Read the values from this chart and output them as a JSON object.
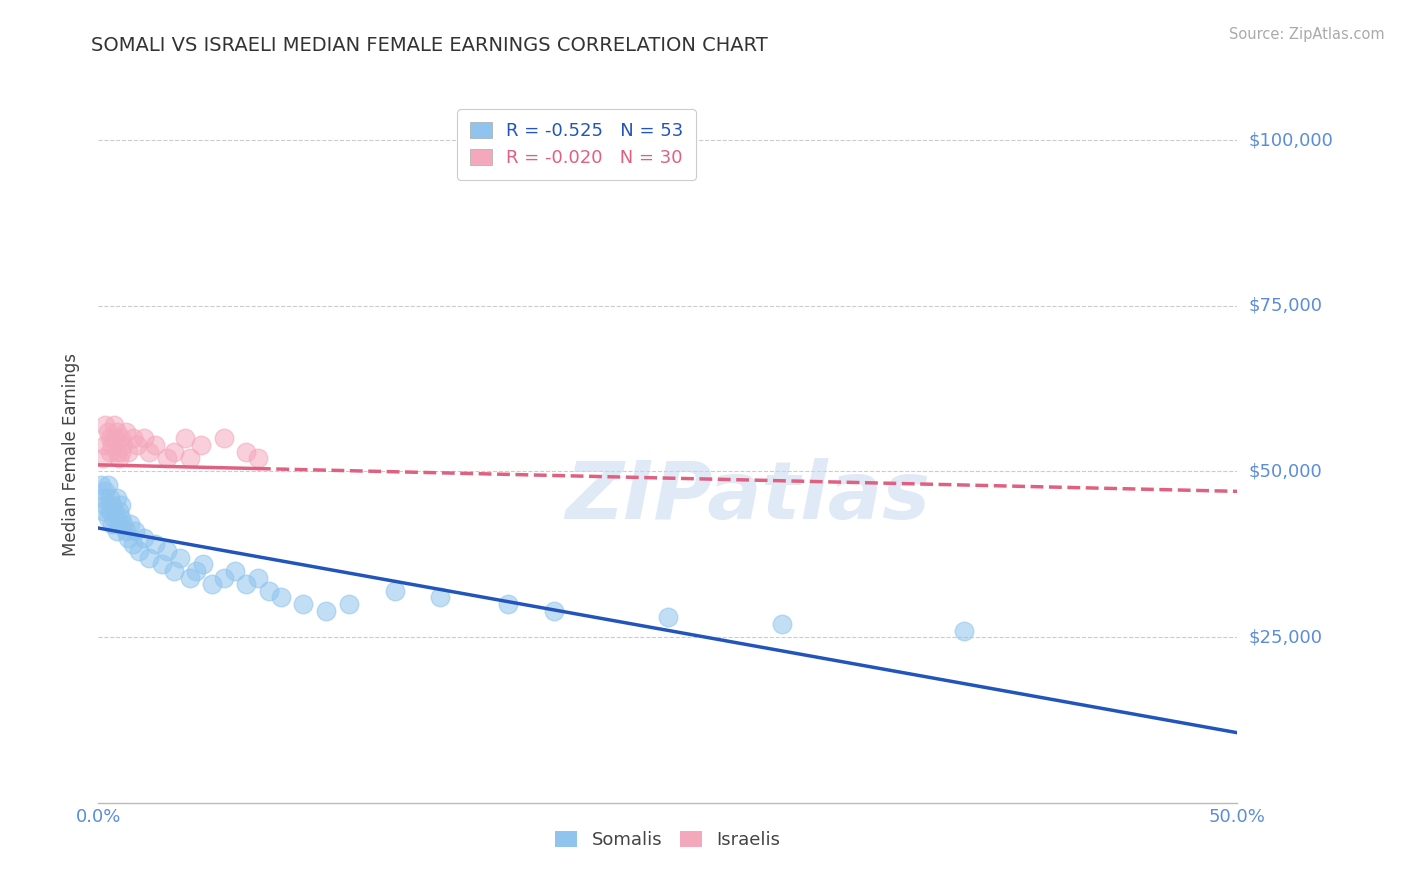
{
  "title": "SOMALI VS ISRAELI MEDIAN FEMALE EARNINGS CORRELATION CHART",
  "source": "Source: ZipAtlas.com",
  "ylabel": "Median Female Earnings",
  "xmin": 0.0,
  "xmax": 0.5,
  "ymin": 0,
  "ymax": 105000,
  "somali_color": "#8EC4EE",
  "israeli_color": "#F4A8BC",
  "somali_line_color": "#2255BB",
  "israeli_line_color": "#E06080",
  "R_somali": -0.525,
  "N_somali": 53,
  "R_israeli": -0.02,
  "N_israeli": 30,
  "watermark": "ZIPatlas",
  "background_color": "#ffffff",
  "grid_color": "#cccccc",
  "ytick_label_color": "#5B8DD9",
  "title_color": "#333333",
  "somali_x": [
    0.001,
    0.002,
    0.002,
    0.003,
    0.003,
    0.004,
    0.004,
    0.005,
    0.005,
    0.006,
    0.006,
    0.007,
    0.007,
    0.008,
    0.008,
    0.009,
    0.009,
    0.01,
    0.01,
    0.011,
    0.012,
    0.013,
    0.014,
    0.015,
    0.016,
    0.018,
    0.02,
    0.022,
    0.025,
    0.028,
    0.03,
    0.033,
    0.036,
    0.04,
    0.043,
    0.046,
    0.05,
    0.055,
    0.06,
    0.065,
    0.07,
    0.075,
    0.08,
    0.09,
    0.1,
    0.11,
    0.13,
    0.15,
    0.18,
    0.2,
    0.25,
    0.3,
    0.38
  ],
  "somali_y": [
    48000,
    46000,
    44000,
    47000,
    45000,
    48000,
    43000,
    46000,
    44000,
    45000,
    42000,
    44000,
    43000,
    46000,
    41000,
    44000,
    42000,
    43000,
    45000,
    42000,
    41000,
    40000,
    42000,
    39000,
    41000,
    38000,
    40000,
    37000,
    39000,
    36000,
    38000,
    35000,
    37000,
    34000,
    35000,
    36000,
    33000,
    34000,
    35000,
    33000,
    34000,
    32000,
    31000,
    30000,
    29000,
    30000,
    32000,
    31000,
    30000,
    29000,
    28000,
    27000,
    26000
  ],
  "israeli_x": [
    0.002,
    0.003,
    0.003,
    0.004,
    0.005,
    0.005,
    0.006,
    0.007,
    0.007,
    0.008,
    0.008,
    0.009,
    0.01,
    0.01,
    0.011,
    0.012,
    0.013,
    0.015,
    0.017,
    0.02,
    0.022,
    0.025,
    0.03,
    0.033,
    0.038,
    0.04,
    0.045,
    0.055,
    0.065,
    0.07
  ],
  "israeli_y": [
    52000,
    54000,
    57000,
    56000,
    55000,
    53000,
    54000,
    57000,
    55000,
    53000,
    56000,
    52000,
    55000,
    53000,
    54000,
    56000,
    53000,
    55000,
    54000,
    55000,
    53000,
    54000,
    52000,
    53000,
    55000,
    52000,
    54000,
    55000,
    53000,
    52000
  ],
  "israeli_line_start_x": 0.0,
  "israeli_line_end_solid_x": 0.07,
  "israeli_line_end_x": 0.5,
  "somali_line_y_at_0": 47000,
  "somali_line_y_at_50pct": 15000
}
